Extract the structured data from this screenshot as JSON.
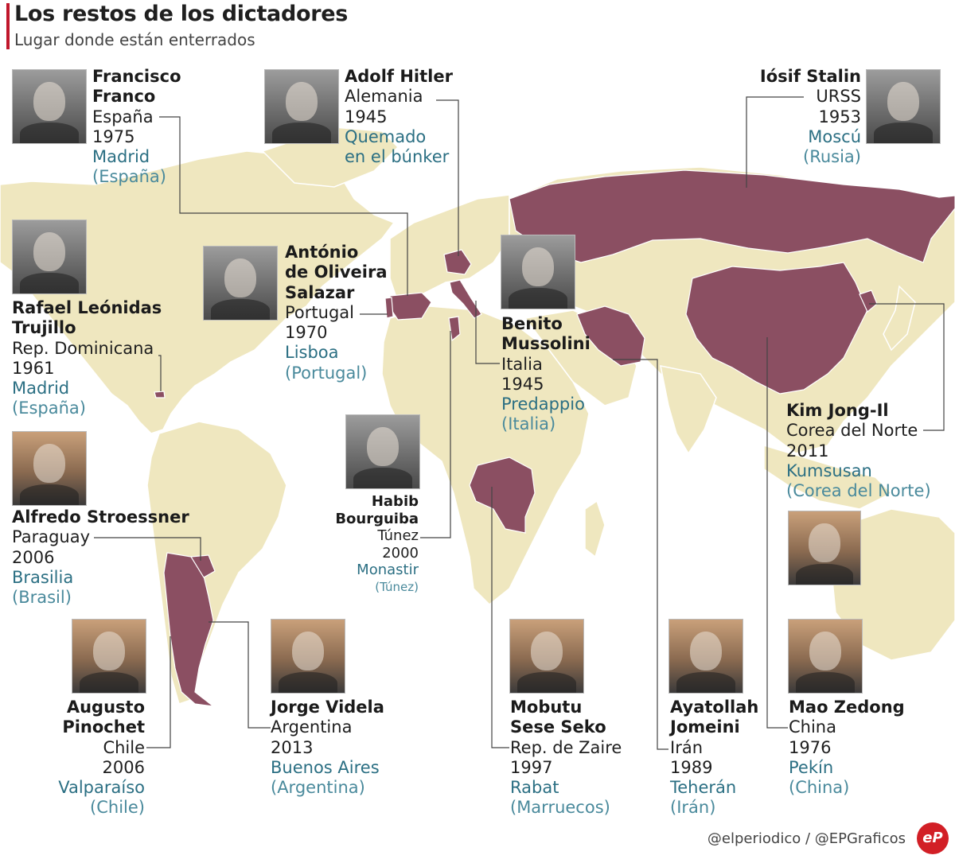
{
  "title": "Los restos de los dictadores",
  "subtitle": "Lugar donde están enterrados",
  "footer": "@elperiodico / @EPGraficos",
  "logo_text": "eP",
  "colors": {
    "land": "#efe7bf",
    "highlight": "#8b4f62",
    "connector": "#444444",
    "place": "#2b6f83",
    "accent": "#c0172b"
  },
  "dictators": [
    {
      "id": "franco",
      "name_lines": [
        "Francisco",
        "Franco"
      ],
      "country": "España",
      "year": "1975",
      "place": "Madrid",
      "place_country": "(España)"
    },
    {
      "id": "hitler",
      "name_lines": [
        "Adolf Hitler"
      ],
      "country": "Alemania",
      "year": "1945",
      "place": "Quemado",
      "place_country": "en el búnker"
    },
    {
      "id": "stalin",
      "name_lines": [
        "Iósif Stalin"
      ],
      "country": "URSS",
      "year": "1953",
      "place": "Moscú",
      "place_country": "(Rusia)"
    },
    {
      "id": "trujillo",
      "name_lines": [
        "Rafael Leónidas",
        "Trujillo"
      ],
      "country": "Rep. Dominicana",
      "year": "1961",
      "place": "Madrid",
      "place_country": "(España)"
    },
    {
      "id": "salazar",
      "name_lines": [
        "António",
        "de Oliveira",
        "Salazar"
      ],
      "country": "Portugal",
      "year": "1970",
      "place": "Lisboa",
      "place_country": "(Portugal)"
    },
    {
      "id": "mussolini",
      "name_lines": [
        "Benito",
        "Mussolini"
      ],
      "country": "Italia",
      "year": "1945",
      "place": "Predappio",
      "place_country": "(Italia)"
    },
    {
      "id": "kimjongil",
      "name_lines": [
        "Kim Jong-Il"
      ],
      "country": "Corea del Norte",
      "year": "2011",
      "place": "Kumsusan",
      "place_country": "(Corea del Norte)"
    },
    {
      "id": "stroessner",
      "name_lines": [
        "Alfredo Stroessner"
      ],
      "country": "Paraguay",
      "year": "2006",
      "place": "Brasilia",
      "place_country": "(Brasil)"
    },
    {
      "id": "bourguiba",
      "name_lines": [
        "Habib",
        "Bourguiba"
      ],
      "country": "Túnez",
      "year": "2000",
      "place": "Monastir",
      "place_country": "(Túnez)"
    },
    {
      "id": "pinochet",
      "name_lines": [
        "Augusto",
        "Pinochet"
      ],
      "country": "Chile",
      "year": "2006",
      "place": "Valparaíso",
      "place_country": "(Chile)"
    },
    {
      "id": "videla",
      "name_lines": [
        "Jorge Videla"
      ],
      "country": "Argentina",
      "year": "2013",
      "place": "Buenos Aires",
      "place_country": "(Argentina)"
    },
    {
      "id": "mobutu",
      "name_lines": [
        "Mobutu",
        "Sese Seko"
      ],
      "country": "Rep. de Zaire",
      "year": "1997",
      "place": "Rabat",
      "place_country": "(Marruecos)"
    },
    {
      "id": "jomeini",
      "name_lines": [
        "Ayatollah",
        "Jomeini"
      ],
      "country": "Irán",
      "year": "1989",
      "place": "Teherán",
      "place_country": "(Irán)"
    },
    {
      "id": "mao",
      "name_lines": [
        "Mao Zedong"
      ],
      "country": "China",
      "year": "1976",
      "place": "Pekín",
      "place_country": "(China)"
    }
  ]
}
